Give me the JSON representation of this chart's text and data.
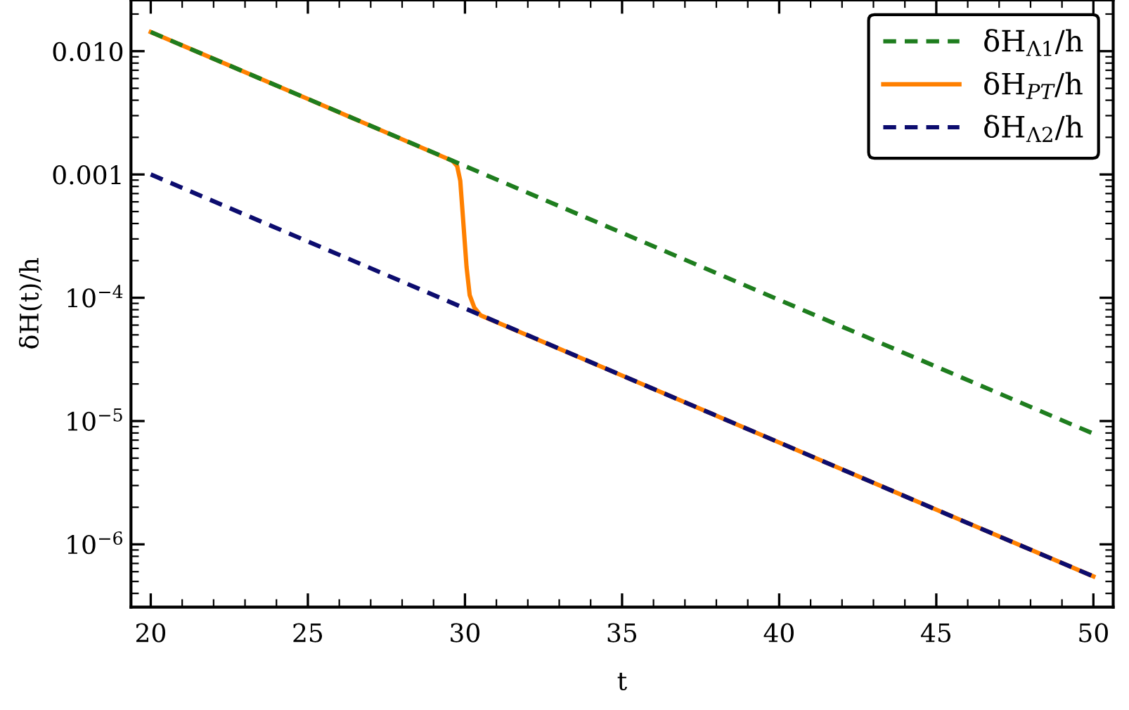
{
  "chart_data": {
    "type": "line",
    "xlabel": "t",
    "ylabel": "δH(t)/h",
    "log": "y",
    "legend": "top right",
    "grid": false,
    "xlim": [
      19.37,
      50.63
    ],
    "xticks": [
      20,
      25,
      30,
      35,
      40,
      45,
      50
    ],
    "ylim": [
      3.1e-07,
      0.026
    ],
    "yticks": [
      {
        "value": 0.01,
        "label": "0.010"
      },
      {
        "value": 0.001,
        "label": "0.001"
      },
      {
        "value": 0.0001,
        "label": "10$^{−4}$"
      },
      {
        "value": 1e-05,
        "label": "10$^{−5}$"
      },
      {
        "value": 1e-06,
        "label": "10$^{−6}$"
      }
    ],
    "series": [
      {
        "name": "δH$_{Λ1}$/h",
        "color": "#1e7d1e",
        "line_style": "dashed",
        "x": [
          20,
          25,
          30,
          35,
          40,
          45,
          50
        ],
        "values": [
          0.0143,
          0.0041,
          0.00117,
          0.000336,
          9.6e-05,
          2.76e-05,
          7.9e-06
        ]
      },
      {
        "name": "δH$_{PT}$/h",
        "color": "#ff8000",
        "line_style": "solid",
        "x": [
          20,
          25,
          29.6,
          29.75,
          29.85,
          29.95,
          30.05,
          30.15,
          30.3,
          30.5,
          35,
          40,
          45,
          50
        ],
        "values": [
          0.0143,
          0.0041,
          0.00129,
          0.00117,
          0.00089,
          0.0004,
          0.000178,
          0.000105,
          8.3e-05,
          7.2e-05,
          2.34e-05,
          6.7e-06,
          1.91e-06,
          5.5e-07
        ]
      },
      {
        "name": "δH$_{Λ2}$/h",
        "color": "#0c0c6e",
        "line_style": "dashed",
        "x": [
          20,
          25,
          30,
          35,
          40,
          45,
          50
        ],
        "values": [
          0.001,
          0.000286,
          8.2e-05,
          2.34e-05,
          6.7e-06,
          1.91e-06,
          5.5e-07
        ]
      }
    ]
  }
}
